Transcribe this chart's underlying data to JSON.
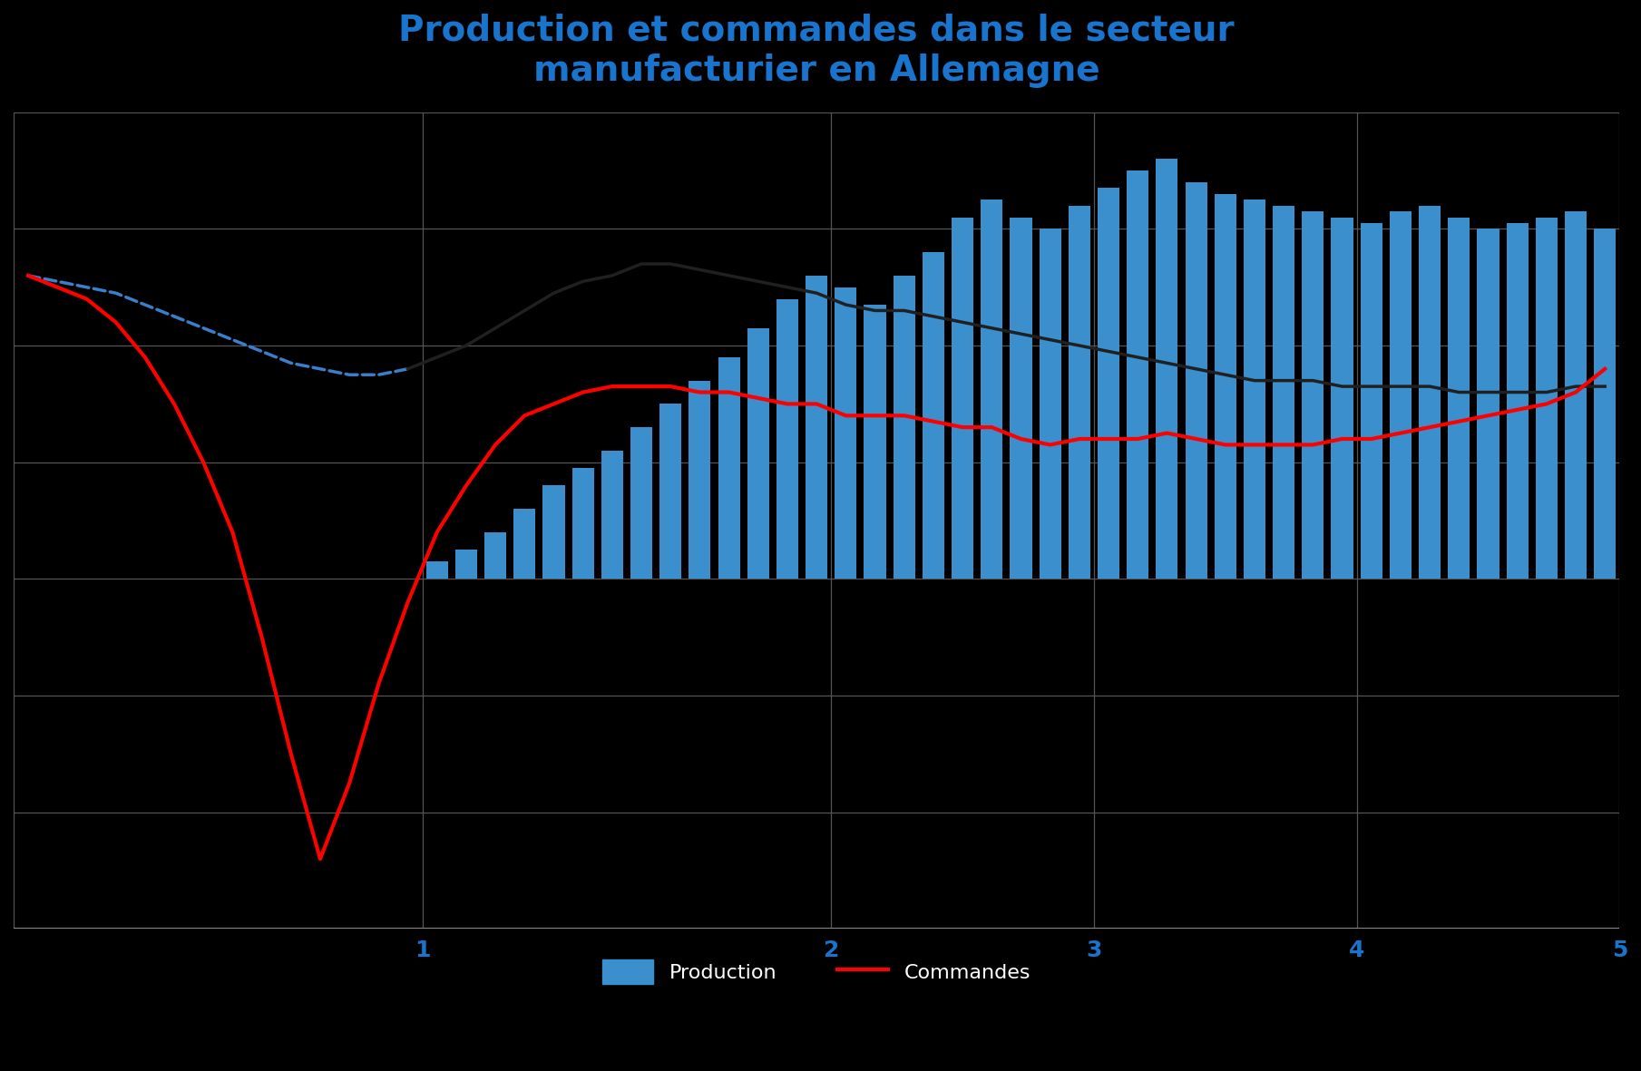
{
  "title": "Production et commandes dans le secteur\nmanufacturier en Allemagne",
  "title_color": "#1874CD",
  "background_color": "#000000",
  "plot_bg_color": "#000000",
  "grid_color": "#555555",
  "bar_color": "#3A8FCC",
  "line_red_color": "#FF0000",
  "line_black_color": "#111111",
  "line_dashed_color": "#3A7FCC",
  "legend_label_blue": "Production",
  "legend_label_red": "Commandes",
  "n_points": 55,
  "bar_start_idx": 14,
  "bar_values": [
    0,
    0,
    0,
    0,
    0,
    0,
    0,
    0,
    0,
    0,
    0,
    0,
    0,
    0,
    3,
    5,
    8,
    12,
    16,
    19,
    22,
    26,
    30,
    34,
    38,
    43,
    48,
    52,
    50,
    47,
    52,
    56,
    62,
    65,
    62,
    60,
    64,
    67,
    70,
    72,
    68,
    66,
    65,
    64,
    63,
    62,
    61,
    63,
    64,
    62,
    60,
    61,
    62,
    63,
    60
  ],
  "red_line": [
    52,
    50,
    48,
    44,
    38,
    30,
    20,
    8,
    -10,
    -30,
    -48,
    -35,
    -18,
    -4,
    8,
    16,
    23,
    28,
    30,
    32,
    33,
    33,
    33,
    32,
    32,
    31,
    30,
    30,
    28,
    28,
    28,
    27,
    26,
    26,
    24,
    23,
    24,
    24,
    24,
    25,
    24,
    23,
    23,
    23,
    23,
    24,
    24,
    25,
    26,
    27,
    28,
    29,
    30,
    32,
    36
  ],
  "black_line": [
    52,
    51,
    50,
    49,
    47,
    45,
    43,
    41,
    39,
    37,
    36,
    35,
    35,
    36,
    38,
    40,
    43,
    46,
    49,
    51,
    52,
    54,
    54,
    53,
    52,
    51,
    50,
    49,
    47,
    46,
    46,
    45,
    44,
    43,
    42,
    41,
    40,
    39,
    38,
    37,
    36,
    35,
    34,
    34,
    34,
    33,
    33,
    33,
    33,
    32,
    32,
    32,
    32,
    33,
    33
  ],
  "dashed_end_idx": 13,
  "ylim_min": -60,
  "ylim_max": 80,
  "xlim_min": -0.5,
  "xlim_max": 54.5,
  "xtick_positions": [
    13.5,
    27.5,
    36.5,
    45.5,
    54.5
  ],
  "xtick_labels": [
    "1",
    "2",
    "3",
    "4",
    "5"
  ],
  "hgrid_vals": [
    -60,
    -40,
    -20,
    0,
    20,
    40,
    60,
    80
  ],
  "vgrid_vals": [
    -0.5,
    13.5,
    27.5,
    36.5,
    45.5,
    54.5
  ]
}
